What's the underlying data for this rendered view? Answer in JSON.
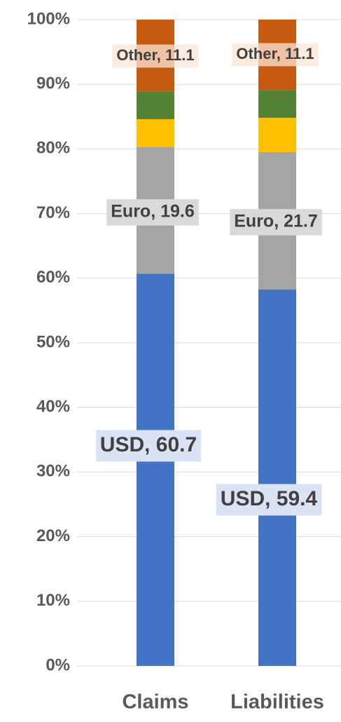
{
  "chart_data": {
    "type": "bar",
    "stack": "percent",
    "categories": [
      "Claims",
      "Liabilities"
    ],
    "series": [
      {
        "color": "#4472c4",
        "values": [
          60.7,
          59.4
        ],
        "value_labels": [
          "USD, 60.7",
          "USD, 59.4"
        ]
      },
      {
        "color": "#a5a5a5",
        "values": [
          19.6,
          21.7
        ],
        "value_labels": [
          "Euro, 19.6",
          "Euro, 21.7"
        ]
      },
      {
        "color": "#ffc000",
        "values": [
          4.3,
          5.4
        ]
      },
      {
        "color": "#548235",
        "values": [
          4.3,
          4.4
        ]
      },
      {
        "color": "#c55a11",
        "values": [
          11.1,
          11.1
        ],
        "value_labels": [
          "Other, 11.1",
          "Other, 11.1"
        ]
      }
    ],
    "ylim": [
      0,
      100
    ],
    "yticks": [
      {
        "value": 0,
        "label": "0%"
      },
      {
        "value": 10,
        "label": "10%"
      },
      {
        "value": 20,
        "label": "20%"
      },
      {
        "value": 30,
        "label": "30%"
      },
      {
        "value": 40,
        "label": "40%"
      },
      {
        "value": 50,
        "label": "50%"
      },
      {
        "value": 60,
        "label": "60%"
      },
      {
        "value": 70,
        "label": "70%"
      },
      {
        "value": 80,
        "label": "80%"
      },
      {
        "value": 90,
        "label": "90%"
      },
      {
        "value": 100,
        "label": "100%"
      }
    ],
    "grid": true
  }
}
